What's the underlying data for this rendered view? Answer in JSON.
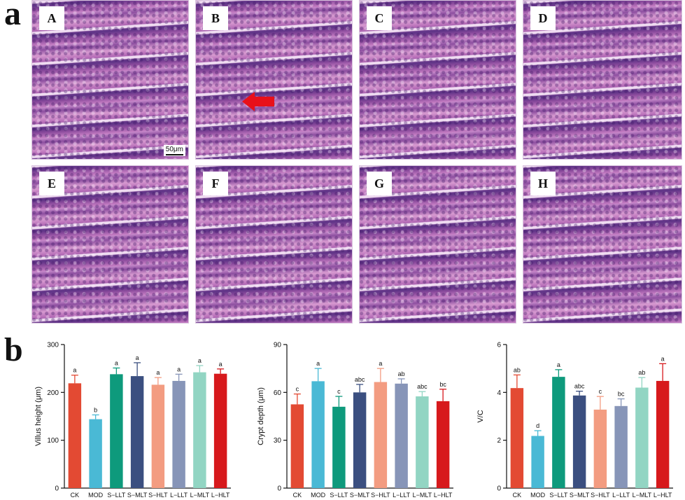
{
  "figure": {
    "part_a_label": "a",
    "part_b_label": "b",
    "panels": [
      {
        "letter": "A"
      },
      {
        "letter": "B"
      },
      {
        "letter": "C"
      },
      {
        "letter": "D"
      },
      {
        "letter": "E"
      },
      {
        "letter": "F"
      },
      {
        "letter": "G"
      },
      {
        "letter": "H"
      }
    ],
    "scale_bar_label": "50μm",
    "arrow_color": "#e8101a"
  },
  "chart_data": [
    {
      "type": "bar",
      "categories": [
        "CK",
        "MOD",
        "S−LLT",
        "S−MLT",
        "S−HLT",
        "L−LLT",
        "L−MLT",
        "L−HLT"
      ],
      "values": [
        219,
        144,
        238,
        234,
        216,
        224,
        242,
        239
      ],
      "errors": [
        17,
        9,
        13,
        28,
        15,
        14,
        14,
        10
      ],
      "significance": [
        "a",
        "b",
        "a",
        "a",
        "a",
        "a",
        "a",
        "a"
      ],
      "ylabel": "Villus height (μm)",
      "ylim": [
        0,
        300
      ],
      "yticks": [
        0,
        100,
        200,
        300
      ],
      "grid": false,
      "colors": [
        "#e34a33",
        "#4ab9d5",
        "#0e9a7c",
        "#3b4f80",
        "#f39c81",
        "#8795b8",
        "#92d5c3",
        "#d7191c"
      ]
    },
    {
      "type": "bar",
      "categories": [
        "CK",
        "MOD",
        "S−LLT",
        "S−MLT",
        "S−HLT",
        "L−LLT",
        "L−MLT",
        "L−HLT"
      ],
      "values": [
        52.5,
        67,
        51,
        60,
        66.5,
        65.5,
        57.5,
        54.5
      ],
      "errors": [
        6.5,
        8,
        6.5,
        5,
        8.5,
        3,
        3,
        7.5
      ],
      "significance": [
        "c",
        "a",
        "c",
        "abc",
        "a",
        "ab",
        "abc",
        "bc"
      ],
      "ylabel": "Crypt depth (μm)",
      "ylim": [
        0,
        90
      ],
      "yticks": [
        0,
        30,
        60,
        90
      ],
      "grid": false,
      "colors": [
        "#e34a33",
        "#4ab9d5",
        "#0e9a7c",
        "#3b4f80",
        "#f39c81",
        "#8795b8",
        "#92d5c3",
        "#d7191c"
      ]
    },
    {
      "type": "bar",
      "categories": [
        "CK",
        "MOD",
        "S−LLT",
        "S−MLT",
        "S−HLT",
        "L−LLT",
        "L−MLT",
        "L−HLT"
      ],
      "values": [
        4.18,
        2.18,
        4.65,
        3.87,
        3.28,
        3.43,
        4.2,
        4.48
      ],
      "errors": [
        0.55,
        0.22,
        0.3,
        0.18,
        0.55,
        0.3,
        0.42,
        0.72
      ],
      "significance": [
        "ab",
        "d",
        "a",
        "abc",
        "c",
        "bc",
        "ab",
        "a"
      ],
      "ylabel": "V/C",
      "ylim": [
        0,
        6
      ],
      "yticks": [
        0,
        2,
        4,
        6
      ],
      "grid": false,
      "colors": [
        "#e34a33",
        "#4ab9d5",
        "#0e9a7c",
        "#3b4f80",
        "#f39c81",
        "#8795b8",
        "#92d5c3",
        "#d7191c"
      ]
    }
  ]
}
